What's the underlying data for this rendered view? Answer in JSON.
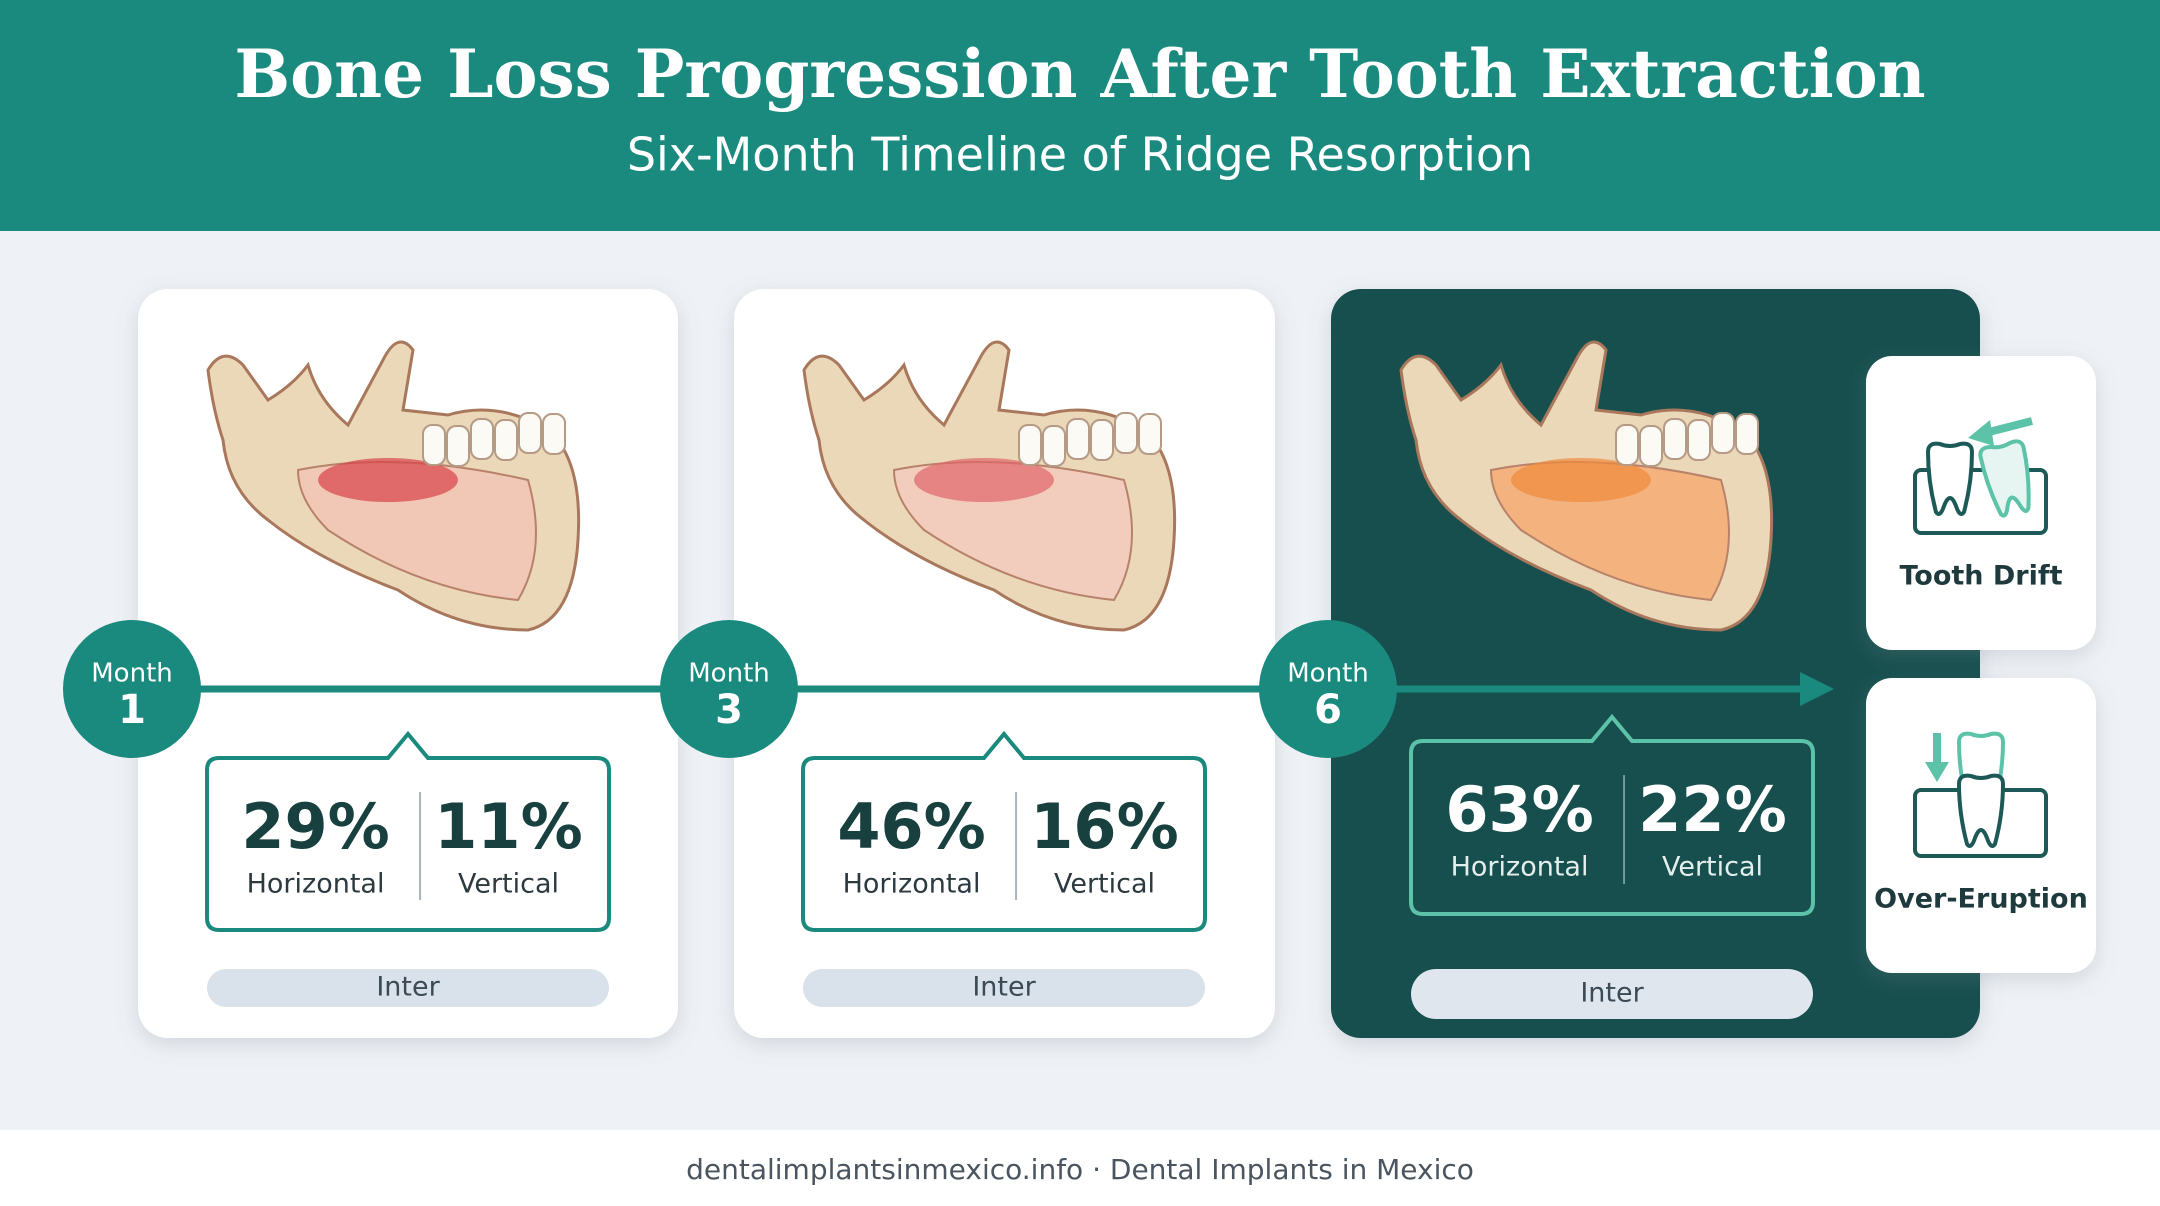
{
  "header": {
    "title": "Bone Loss Progression After Tooth Extraction",
    "subtitle": "Six-Month Timeline of Ridge Resorption"
  },
  "stages": [
    {
      "month_label": "Month",
      "month": "1",
      "horizontal": "29%",
      "horizontal_label": "Horizontal",
      "vertical": "11%",
      "vertical_label": "Vertical",
      "tag": "Inter"
    },
    {
      "month_label": "Month",
      "month": "3",
      "horizontal": "46%",
      "horizontal_label": "Horizontal",
      "vertical": "16%",
      "vertical_label": "Vertical",
      "tag": "Inter"
    },
    {
      "month_label": "Month",
      "month": "6",
      "horizontal": "63%",
      "horizontal_label": "Horizontal",
      "vertical": "22%",
      "vertical_label": "Vertical",
      "tag": "Inter"
    }
  ],
  "effects": [
    {
      "label": "Tooth Drift"
    },
    {
      "label": "Over-Eruption"
    }
  ],
  "footer": "dentalimplantsinmexico.info · Dental Implants in Mexico"
}
